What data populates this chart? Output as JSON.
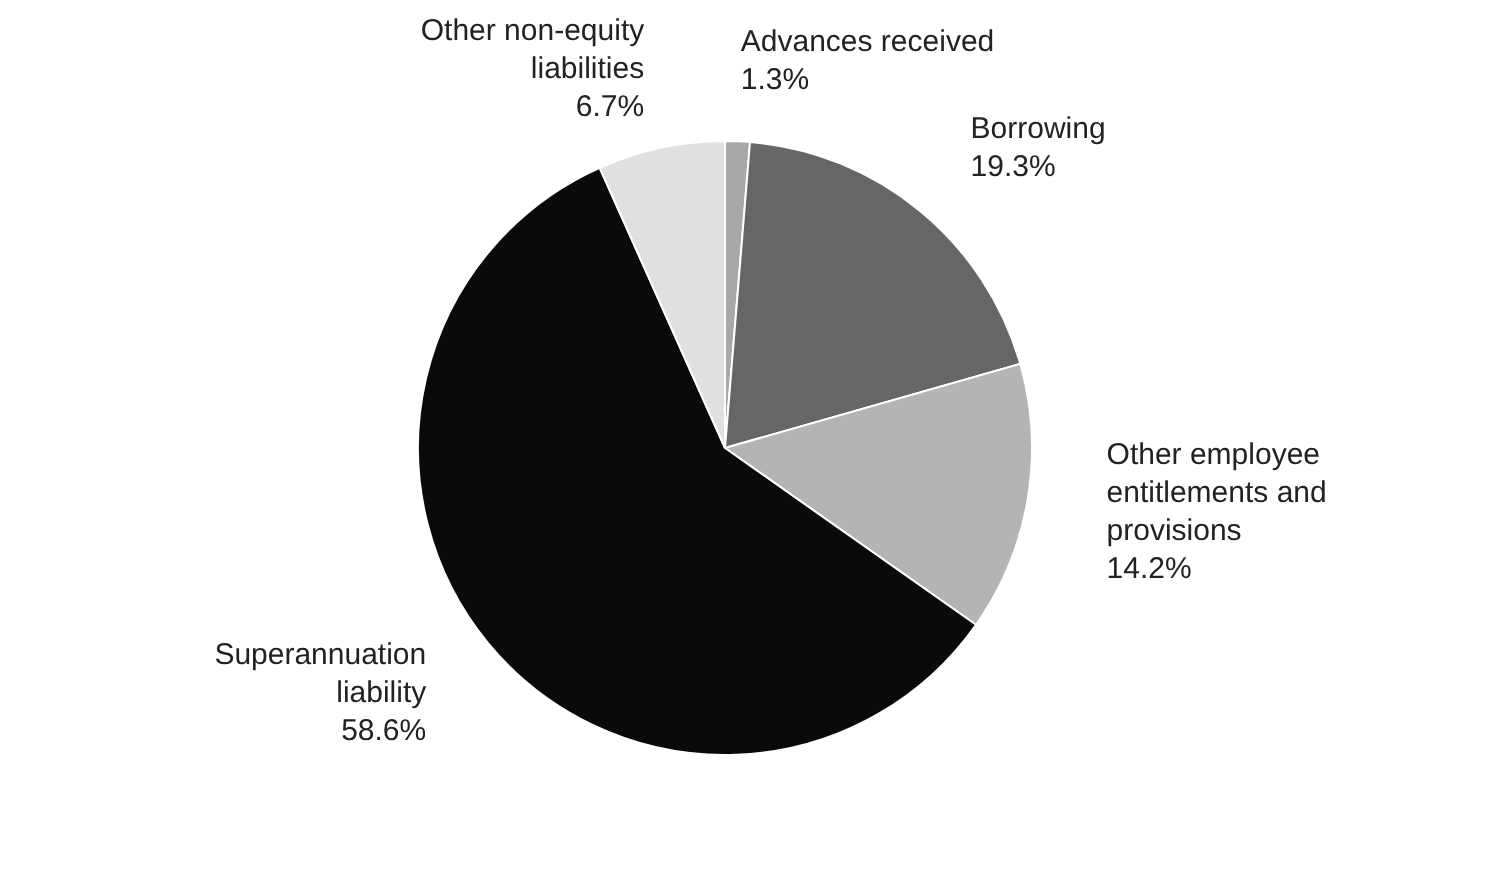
{
  "chart_data": {
    "type": "pie",
    "categories": [
      "Advances received",
      "Borrowing",
      "Other employee entitlements and provisions",
      "Superannuation liability",
      "Other non-equity liabilities"
    ],
    "values": [
      1.3,
      19.3,
      14.2,
      58.6,
      6.7
    ],
    "value_labels": [
      "1.3%",
      "19.3%",
      "14.2%",
      "58.6%",
      "6.7%"
    ],
    "colors": [
      "#a8a8a8",
      "#666666",
      "#b4b4b4",
      "#0a0a0a",
      "#e0e0e0"
    ],
    "legend": false
  }
}
